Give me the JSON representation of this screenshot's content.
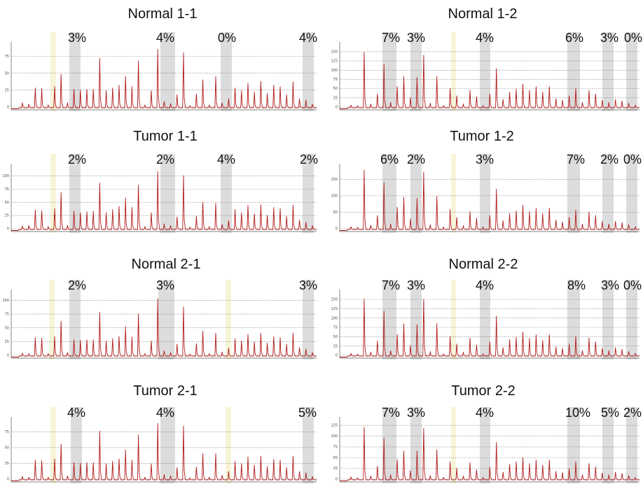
{
  "colors": {
    "trace": "#b11a1a",
    "highlight_gray": "#dcdcdc",
    "highlight_yellow": "#f7f4d9",
    "grid": "#7a7a7a"
  },
  "chart_data": [
    {
      "type": "line",
      "title": "Normal 1-1",
      "annotations": [
        "3%",
        "4%",
        "0%",
        "4%"
      ],
      "yticks": [
        "0",
        "25",
        "50",
        "75"
      ],
      "ylim": [
        0,
        90
      ],
      "peaks": [
        6,
        4,
        28,
        27,
        3,
        30,
        48,
        6,
        26,
        25,
        26,
        26,
        72,
        24,
        28,
        32,
        45,
        30,
        68,
        3,
        24,
        85,
        8,
        5,
        18,
        80,
        2,
        19,
        40,
        3,
        45,
        6,
        12,
        28,
        24,
        35,
        22,
        38,
        20,
        32,
        30,
        18,
        37,
        12,
        10,
        4
      ]
    },
    {
      "type": "line",
      "title": "Normal 1-2",
      "annotations": [
        "7%",
        "3%",
        "4%",
        "6%",
        "3%",
        "0%"
      ],
      "yticks": [
        "0",
        "25",
        "50",
        "75",
        "100",
        "125",
        "150"
      ],
      "ylim": [
        0,
        165
      ],
      "peaks": [
        5,
        3,
        148,
        8,
        35,
        115,
        12,
        55,
        82,
        25,
        80,
        140,
        10,
        83,
        4,
        50,
        30,
        8,
        45,
        28,
        4,
        35,
        104,
        20,
        40,
        48,
        62,
        45,
        55,
        40,
        55,
        22,
        18,
        30,
        50,
        12,
        45,
        35,
        18,
        12,
        20,
        16,
        10,
        5
      ]
    },
    {
      "type": "line",
      "title": "Tumor 1-1",
      "annotations": [
        "2%",
        "2%",
        "4%",
        "2%"
      ],
      "yticks": [
        "0",
        "25",
        "50",
        "75",
        "100"
      ],
      "ylim": [
        0,
        115
      ],
      "peaks": [
        5,
        6,
        35,
        34,
        4,
        38,
        68,
        6,
        33,
        30,
        32,
        33,
        86,
        30,
        36,
        42,
        58,
        40,
        82,
        4,
        30,
        108,
        9,
        6,
        22,
        100,
        3,
        23,
        50,
        4,
        48,
        8,
        15,
        36,
        30,
        44,
        28,
        45,
        25,
        40,
        38,
        23,
        44,
        16,
        12,
        6
      ]
    },
    {
      "type": "line",
      "title": "Tumor 1-2",
      "annotations": [
        "6%",
        "2%",
        "3%",
        "7%",
        "2%",
        "0%"
      ],
      "yticks": [
        "0",
        "50",
        "100",
        "150"
      ],
      "ylim": [
        0,
        185
      ],
      "peaks": [
        6,
        4,
        178,
        10,
        40,
        140,
        14,
        65,
        95,
        30,
        92,
        172,
        12,
        98,
        5,
        58,
        34,
        9,
        52,
        32,
        5,
        40,
        120,
        24,
        46,
        54,
        70,
        52,
        62,
        45,
        62,
        26,
        20,
        34,
        56,
        14,
        50,
        40,
        22,
        14,
        22,
        18,
        12,
        6
      ]
    },
    {
      "type": "line",
      "title": "Normal 2-1",
      "annotations": [
        "2%",
        "3%",
        "3%"
      ],
      "yticks": [
        "0",
        "25",
        "50",
        "75",
        "100"
      ],
      "ylim": [
        0,
        112
      ],
      "peaks": [
        4,
        3,
        32,
        31,
        3,
        34,
        62,
        5,
        28,
        27,
        28,
        28,
        78,
        26,
        30,
        34,
        52,
        33,
        75,
        3,
        26,
        103,
        8,
        5,
        20,
        88,
        2,
        21,
        44,
        3,
        40,
        6,
        13,
        30,
        26,
        38,
        24,
        40,
        22,
        34,
        32,
        20,
        40,
        14,
        11,
        5
      ]
    },
    {
      "type": "line",
      "title": "Normal 2-2",
      "annotations": [
        "7%",
        "3%",
        "4%",
        "8%",
        "3%",
        "0%"
      ],
      "yticks": [
        "0",
        "25",
        "50",
        "75",
        "100",
        "125",
        "150"
      ],
      "ylim": [
        0,
        165
      ],
      "peaks": [
        5,
        3,
        150,
        8,
        38,
        118,
        12,
        56,
        84,
        26,
        82,
        150,
        10,
        85,
        4,
        50,
        30,
        8,
        46,
        28,
        4,
        36,
        105,
        20,
        42,
        48,
        62,
        45,
        55,
        40,
        55,
        22,
        18,
        30,
        50,
        12,
        46,
        36,
        18,
        12,
        20,
        16,
        10,
        5
      ]
    },
    {
      "type": "line",
      "title": "Tumor 2-1",
      "annotations": [
        "4%",
        "4%",
        "5%"
      ],
      "yticks": [
        "0",
        "25",
        "50",
        "75"
      ],
      "ylim": [
        0,
        92
      ],
      "peaks": [
        4,
        3,
        30,
        29,
        3,
        32,
        55,
        5,
        26,
        25,
        26,
        26,
        76,
        24,
        28,
        32,
        46,
        30,
        70,
        3,
        24,
        88,
        7,
        5,
        18,
        84,
        2,
        19,
        40,
        3,
        40,
        6,
        12,
        28,
        24,
        35,
        22,
        36,
        20,
        31,
        30,
        18,
        36,
        12,
        10,
        4
      ]
    },
    {
      "type": "line",
      "title": "Tumor 2-2",
      "annotations": [
        "7%",
        "3%",
        "4%",
        "10%",
        "5%",
        "2%"
      ],
      "yticks": [
        "0",
        "25",
        "50",
        "75",
        "100",
        "125"
      ],
      "ylim": [
        0,
        135
      ],
      "peaks": [
        5,
        3,
        120,
        7,
        30,
        95,
        10,
        45,
        65,
        20,
        65,
        118,
        8,
        68,
        4,
        40,
        25,
        7,
        38,
        22,
        4,
        28,
        85,
        16,
        34,
        40,
        50,
        36,
        44,
        32,
        44,
        18,
        15,
        24,
        40,
        10,
        36,
        28,
        14,
        10,
        16,
        13,
        8,
        4
      ]
    }
  ]
}
